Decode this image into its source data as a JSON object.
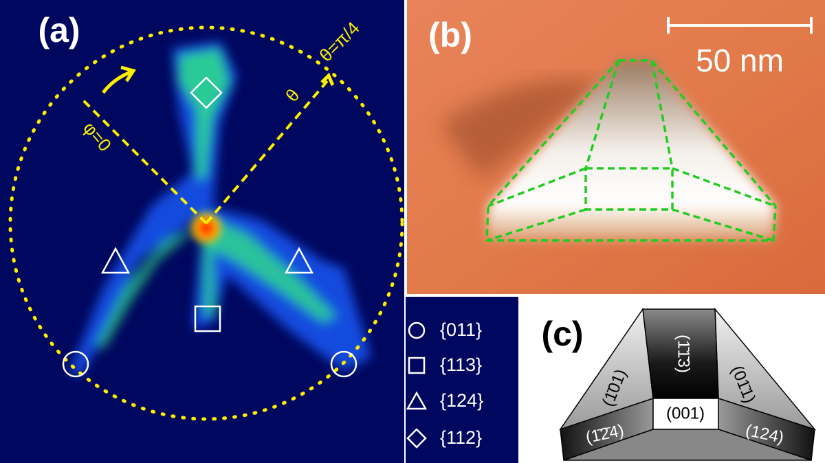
{
  "panel_a": {
    "label": "(a)",
    "theta_label": "θ=π/4",
    "theta_arrow_label": "θ",
    "phi_label": "φ=0"
  },
  "panel_b": {
    "label": "(b)",
    "scale_bar": "50 nm"
  },
  "legend": {
    "items": [
      "{011}",
      "{113}",
      "{124}",
      "{112}"
    ]
  },
  "panel_c": {
    "label": "(c)",
    "facets": {
      "top": "(1̄1̄3)",
      "left": "(1̄01)",
      "right": "(01̄1)",
      "center": "(001)",
      "bottom_left": "(1̄2̄4)",
      "bottom_right": "(124)"
    }
  }
}
